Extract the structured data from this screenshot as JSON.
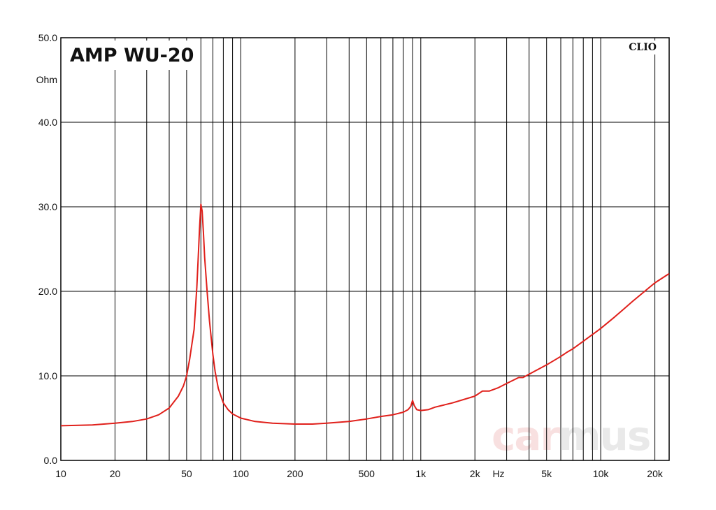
{
  "chart_data": {
    "type": "line",
    "title": "AMP WU-20",
    "brand": "CLIO",
    "watermark": {
      "part1": "car",
      "part2": "mus"
    },
    "ylabel": "Ohm",
    "xunit": "Hz",
    "xscale": "log",
    "xlim": [
      10,
      24000
    ],
    "ylim": [
      0,
      50
    ],
    "grid": true,
    "legend": "none",
    "line_color": "#e0201b",
    "yticks": [
      {
        "value": 0,
        "label": "0.0"
      },
      {
        "value": 10,
        "label": "10.0"
      },
      {
        "value": 20,
        "label": "20.0"
      },
      {
        "value": 30,
        "label": "30.0"
      },
      {
        "value": 40,
        "label": "40.0"
      },
      {
        "value": 50,
        "label": "50.0"
      }
    ],
    "xticks": [
      {
        "value": 10,
        "label": "10"
      },
      {
        "value": 20,
        "label": "20"
      },
      {
        "value": 50,
        "label": "50"
      },
      {
        "value": 100,
        "label": "100"
      },
      {
        "value": 200,
        "label": "200"
      },
      {
        "value": 500,
        "label": "500"
      },
      {
        "value": 1000,
        "label": "1k"
      },
      {
        "value": 2000,
        "label": "2k"
      },
      {
        "value": 5000,
        "label": "5k"
      },
      {
        "value": 10000,
        "label": "10k"
      },
      {
        "value": 20000,
        "label": "20k"
      }
    ],
    "x_minor_grid": [
      20,
      30,
      40,
      50,
      60,
      70,
      80,
      90,
      100,
      200,
      300,
      400,
      500,
      600,
      700,
      800,
      900,
      1000,
      2000,
      3000,
      4000,
      5000,
      6000,
      7000,
      8000,
      9000,
      10000,
      20000
    ],
    "series": [
      {
        "x": [
          10,
          15,
          20,
          25,
          30,
          35,
          40,
          45,
          48,
          50,
          52,
          55,
          57,
          58,
          59,
          60,
          61,
          62,
          63,
          65,
          67,
          70,
          72,
          75,
          80,
          85,
          90,
          100,
          120,
          150,
          200,
          250,
          300,
          400,
          500,
          600,
          700,
          800,
          850,
          880,
          900,
          920,
          950,
          1000,
          1100,
          1200,
          1500,
          2000,
          2200,
          2400,
          2700,
          3000,
          3500,
          3700,
          4000,
          5000,
          6000,
          6500,
          7000,
          8000,
          10000,
          12000,
          15000,
          18000,
          20000,
          24000
        ],
        "y": [
          4.1,
          4.2,
          4.4,
          4.6,
          4.9,
          5.4,
          6.2,
          7.6,
          8.8,
          10.0,
          12.0,
          15.5,
          20.5,
          24.0,
          27.5,
          30.3,
          29.5,
          27.0,
          24.0,
          20.0,
          16.5,
          12.5,
          10.5,
          8.5,
          6.8,
          6.0,
          5.5,
          5.0,
          4.6,
          4.4,
          4.3,
          4.3,
          4.4,
          4.6,
          4.9,
          5.2,
          5.4,
          5.7,
          6.0,
          6.4,
          7.1,
          6.5,
          6.0,
          5.9,
          6.0,
          6.3,
          6.8,
          7.6,
          8.2,
          8.2,
          8.6,
          9.1,
          9.8,
          9.8,
          10.2,
          11.3,
          12.3,
          12.8,
          13.2,
          14.1,
          15.6,
          17.0,
          18.8,
          20.2,
          21.0,
          22.1
        ]
      }
    ]
  }
}
